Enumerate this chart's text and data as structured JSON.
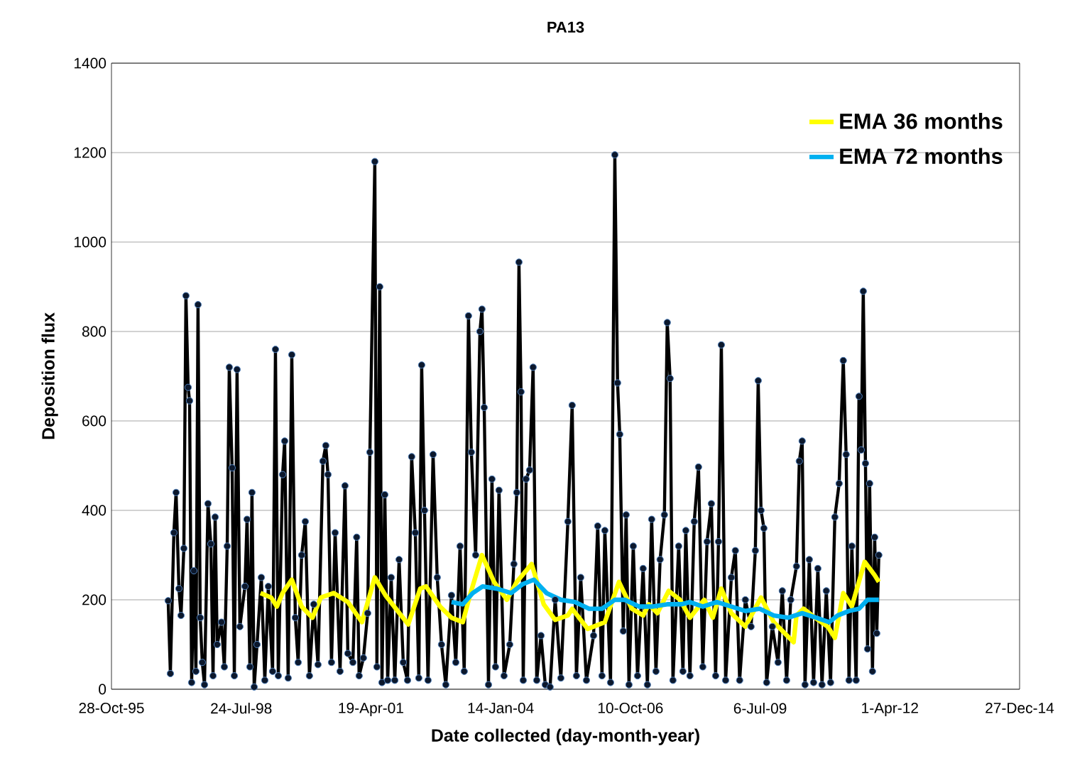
{
  "chart_data": {
    "type": "line",
    "title": "PA13",
    "xlabel": "Date collected  (day-month-year)",
    "ylabel": "Deposition flux",
    "xlim": [
      "1995-10-28",
      "2014-12-27"
    ],
    "xticks": [
      {
        "value": "1995-10-28",
        "label": "28-Oct-95"
      },
      {
        "value": "1998-07-24",
        "label": "24-Jul-98"
      },
      {
        "value": "2001-04-19",
        "label": "19-Apr-01"
      },
      {
        "value": "2004-01-14",
        "label": "14-Jan-04"
      },
      {
        "value": "2006-10-10",
        "label": "10-Oct-06"
      },
      {
        "value": "2009-07-06",
        "label": "6-Jul-09"
      },
      {
        "value": "2012-04-01",
        "label": "1-Apr-12"
      },
      {
        "value": "2014-12-27",
        "label": "27-Dec-14"
      }
    ],
    "ylim": [
      0,
      1400
    ],
    "yticks": [
      0,
      200,
      400,
      600,
      800,
      1000,
      1200,
      1400
    ],
    "grid": "y",
    "legend": "top right",
    "series": [
      {
        "color": "#000000",
        "marker": "circle",
        "x": [
          "1997-01-07",
          "1997-01-24",
          "1997-02-20",
          "1997-03-09",
          "1997-03-31",
          "1997-04-16",
          "1997-05-08",
          "1997-05-24",
          "1997-06-10",
          "1997-06-21",
          "1997-07-07",
          "1997-07-24",
          "1997-08-09",
          "1997-08-25",
          "1997-09-11",
          "1997-09-27",
          "1997-10-14",
          "1997-11-10",
          "1997-12-02",
          "1997-12-19",
          "1998-01-04",
          "1998-01-20",
          "1998-02-22",
          "1998-03-16",
          "1998-04-07",
          "1998-04-23",
          "1998-05-15",
          "1998-06-01",
          "1998-06-22",
          "1998-07-14",
          "1998-08-22",
          "1998-09-07",
          "1998-09-29",
          "1998-10-15",
          "1998-11-01",
          "1998-11-23",
          "1998-12-26",
          "1999-01-22",
          "1999-02-18",
          "1999-03-23",
          "1999-04-14",
          "1999-05-06",
          "1999-06-08",
          "1999-06-24",
          "1999-07-21",
          "1999-08-18",
          "1999-09-14",
          "1999-10-06",
          "1999-11-02",
          "1999-11-30",
          "2000-01-01",
          "2000-02-03",
          "2000-03-07",
          "2000-04-14",
          "2000-05-06",
          "2000-05-23",
          "2000-06-19",
          "2000-07-17",
          "2000-08-24",
          "2000-10-01",
          "2000-10-23",
          "2000-12-01",
          "2000-12-30",
          "2001-01-18",
          "2001-02-20",
          "2001-03-25",
          "2001-04-11",
          "2001-05-19",
          "2001-06-04",
          "2001-06-26",
          "2001-07-13",
          "2001-08-04",
          "2001-08-26",
          "2001-09-22",
          "2001-10-20",
          "2001-11-22",
          "2001-12-24",
          "2002-01-26",
          "2002-02-27",
          "2002-03-27",
          "2002-04-23",
          "2002-05-15",
          "2002-06-06",
          "2002-07-03",
          "2002-08-11",
          "2002-09-12",
          "2002-10-15",
          "2002-11-17",
          "2002-12-31",
          "2003-02-02",
          "2003-03-07",
          "2003-04-08",
          "2003-05-11",
          "2003-06-02",
          "2003-07-05",
          "2003-08-07",
          "2003-08-23",
          "2003-09-09",
          "2003-10-12",
          "2003-11-08",
          "2003-12-05",
          "2004-01-01",
          "2004-02-09",
          "2004-03-24",
          "2004-04-25",
          "2004-05-17",
          "2004-06-03",
          "2004-06-19",
          "2004-07-06",
          "2004-07-28",
          "2004-08-24",
          "2004-09-20",
          "2004-10-18",
          "2004-11-20",
          "2004-12-23",
          "2005-01-29",
          "2005-03-09",
          "2005-04-22",
          "2005-06-15",
          "2005-07-18",
          "2005-08-20",
          "2005-09-22",
          "2005-11-05",
          "2005-12-30",
          "2006-01-31",
          "2006-03-05",
          "2006-03-27",
          "2006-05-10",
          "2006-06-12",
          "2006-07-03",
          "2006-07-20",
          "2006-08-16",
          "2006-09-07",
          "2006-09-29",
          "2006-11-01",
          "2006-12-04",
          "2007-01-16",
          "2007-02-18",
          "2007-03-23",
          "2007-04-25",
          "2007-05-27",
          "2007-06-29",
          "2007-07-21",
          "2007-08-12",
          "2007-09-03",
          "2007-10-17",
          "2007-11-19",
          "2007-12-11",
          "2008-01-12",
          "2008-02-14",
          "2008-03-18",
          "2008-04-20",
          "2008-05-23",
          "2008-06-25",
          "2008-07-28",
          "2008-08-19",
          "2008-09-10",
          "2008-10-13",
          "2008-11-26",
          "2008-12-27",
          "2009-01-29",
          "2009-03-14",
          "2009-04-27",
          "2009-05-30",
          "2009-06-21",
          "2009-07-13",
          "2009-08-04",
          "2009-08-25",
          "2009-10-08",
          "2009-11-21",
          "2009-12-24",
          "2010-01-26",
          "2010-02-27",
          "2010-04-12",
          "2010-05-04",
          "2010-05-26",
          "2010-06-17",
          "2010-07-20",
          "2010-08-22",
          "2010-09-24",
          "2010-10-26",
          "2010-11-28",
          "2010-12-31",
          "2011-02-02",
          "2011-03-07",
          "2011-04-08",
          "2011-04-30",
          "2011-05-22",
          "2011-06-13",
          "2011-07-16",
          "2011-08-07",
          "2011-08-24",
          "2011-09-09",
          "2011-09-26",
          "2011-10-12",
          "2011-10-28",
          "2011-11-19",
          "2011-12-06",
          "2011-12-22",
          "2012-01-07"
        ],
        "values": [
          198,
          35,
          350,
          440,
          225,
          165,
          315,
          880,
          675,
          645,
          15,
          265,
          40,
          860,
          160,
          60,
          10,
          415,
          325,
          30,
          385,
          100,
          150,
          50,
          320,
          720,
          495,
          30,
          715,
          140,
          230,
          380,
          50,
          440,
          5,
          100,
          250,
          20,
          230,
          40,
          760,
          30,
          480,
          555,
          25,
          748,
          160,
          60,
          300,
          375,
          30,
          190,
          55,
          510,
          545,
          480,
          60,
          350,
          40,
          455,
          80,
          60,
          340,
          30,
          70,
          170,
          530,
          1180,
          50,
          900,
          15,
          435,
          20,
          250,
          20,
          290,
          60,
          20,
          520,
          350,
          25,
          725,
          400,
          20,
          525,
          250,
          100,
          10,
          210,
          60,
          320,
          40,
          835,
          530,
          300,
          800,
          850,
          630,
          10,
          470,
          50,
          445,
          30,
          100,
          280,
          440,
          955,
          665,
          20,
          470,
          490,
          720,
          20,
          120,
          10,
          5,
          200,
          25,
          375,
          635,
          30,
          250,
          20,
          120,
          365,
          30,
          355,
          15,
          1195,
          685,
          570,
          130,
          390,
          10,
          320,
          30,
          270,
          10,
          380,
          40,
          290,
          390,
          820,
          695,
          20,
          320,
          40,
          355,
          30,
          375,
          497,
          50,
          330,
          415,
          30,
          330,
          770,
          20,
          250,
          310,
          20,
          200,
          140,
          310,
          690,
          400,
          360,
          15,
          140,
          60,
          220,
          20,
          200,
          275,
          510,
          555,
          10,
          290,
          15,
          270,
          10,
          220,
          15,
          385,
          460,
          735,
          525,
          20,
          320,
          20,
          655,
          535,
          890,
          505,
          90,
          460,
          40,
          340,
          125,
          300
        ]
      },
      {
        "name": "EMA 36 months",
        "color": "#ffff00",
        "marker": "none",
        "x": [
          "1998-12-20",
          "1999-03-12",
          "1999-04-25",
          "1999-06-08",
          "1999-08-18",
          "1999-11-02",
          "2000-01-24",
          "2000-03-29",
          "2000-07-06",
          "2000-10-23",
          "2001-02-09",
          "2001-05-19",
          "2001-08-09",
          "2001-12-08",
          "2002-01-31",
          "2002-05-04",
          "2002-06-17",
          "2002-10-04",
          "2002-12-31",
          "2003-03-28",
          "2003-05-22",
          "2003-08-23",
          "2003-11-24",
          "2004-03-02",
          "2004-05-17",
          "2004-09-09",
          "2004-12-11",
          "2005-03-09",
          "2005-06-15",
          "2005-07-18",
          "2005-11-15",
          "2006-03-27",
          "2006-07-14",
          "2006-10-21",
          "2007-01-16",
          "2007-03-01",
          "2007-05-06",
          "2007-08-01",
          "2007-10-28",
          "2008-01-12",
          "2008-05-01",
          "2008-07-06",
          "2008-09-10",
          "2008-11-26",
          "2009-03-14",
          "2009-07-13",
          "2009-10-19",
          "2010-03-21",
          "2010-04-12",
          "2010-06-06",
          "2010-09-02",
          "2010-12-09",
          "2011-02-02",
          "2011-04-08",
          "2011-06-13",
          "2011-09-20",
          "2011-12-06",
          "2012-01-07"
        ],
        "values": [
          215,
          205,
          185,
          215,
          245,
          185,
          160,
          205,
          215,
          195,
          150,
          250,
          210,
          165,
          145,
          225,
          230,
          185,
          160,
          150,
          210,
          300,
          240,
          200,
          240,
          280,
          190,
          155,
          165,
          180,
          135,
          150,
          240,
          180,
          165,
          190,
          170,
          220,
          200,
          160,
          200,
          160,
          225,
          170,
          140,
          205,
          150,
          105,
          165,
          180,
          160,
          140,
          115,
          215,
          185,
          285,
          255,
          240
        ]
      },
      {
        "name": "EMA 72 months",
        "color": "#00b0f0",
        "marker": "none",
        "x": [
          "2002-12-31",
          "2003-03-28",
          "2003-06-12",
          "2003-08-28",
          "2003-12-15",
          "2004-04-04",
          "2004-07-01",
          "2004-09-26",
          "2005-01-02",
          "2005-04-22",
          "2005-08-09",
          "2005-11-26",
          "2006-03-05",
          "2006-06-12",
          "2006-08-27",
          "2006-12-15",
          "2007-04-03",
          "2007-07-21",
          "2007-11-07",
          "2008-01-12",
          "2008-04-20",
          "2008-08-07",
          "2008-11-26",
          "2009-03-14",
          "2009-07-02",
          "2009-10-19",
          "2010-02-06",
          "2010-05-26",
          "2010-09-12",
          "2010-12-20",
          "2011-02-24",
          "2011-05-22",
          "2011-08-07",
          "2011-10-12",
          "2012-01-07"
        ],
        "values": [
          195,
          190,
          215,
          230,
          225,
          215,
          235,
          245,
          215,
          200,
          195,
          180,
          180,
          200,
          200,
          185,
          185,
          190,
          190,
          195,
          185,
          195,
          185,
          175,
          180,
          165,
          160,
          170,
          160,
          150,
          165,
          175,
          180,
          200,
          200
        ]
      }
    ]
  }
}
